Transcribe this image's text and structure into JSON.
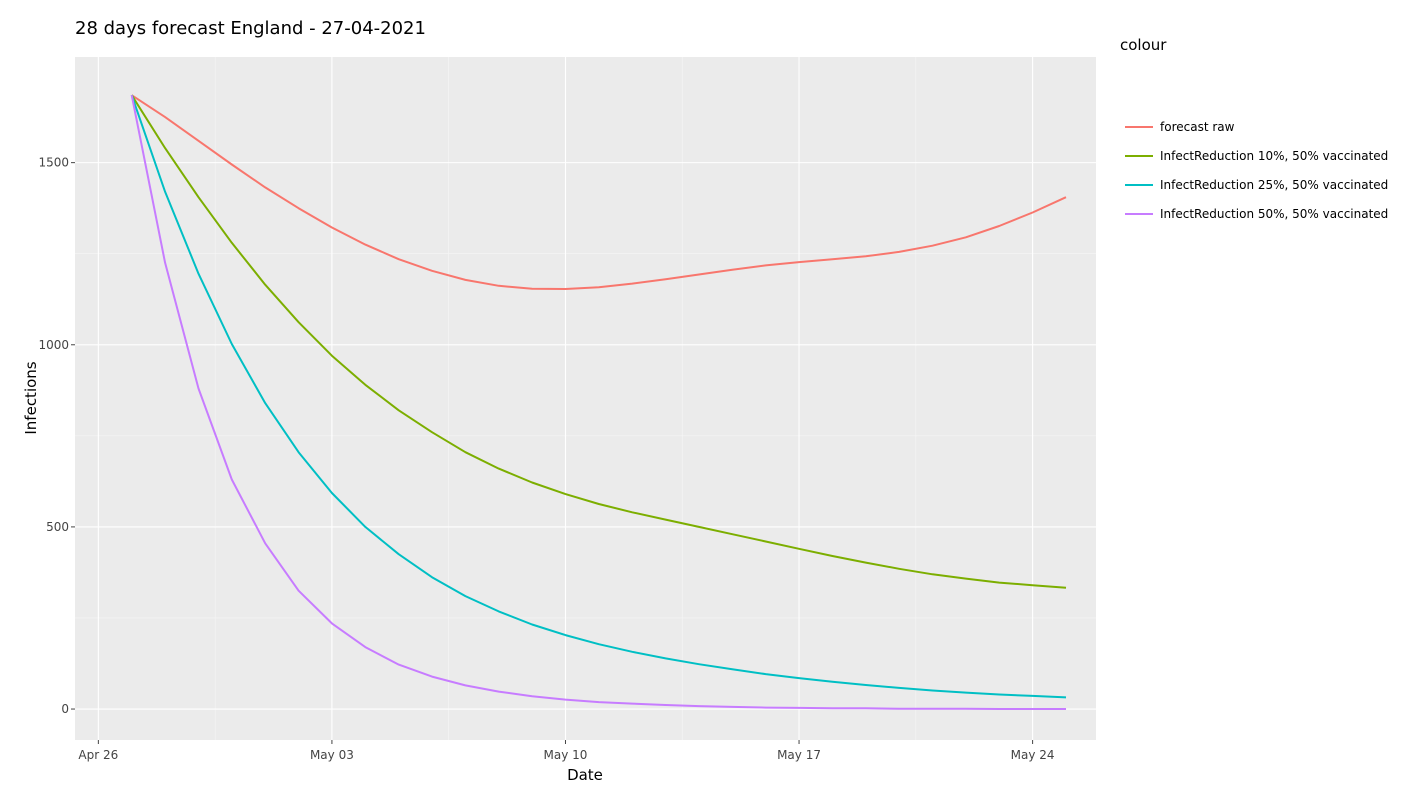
{
  "chart_data": {
    "type": "line",
    "title": "28 days forecast England - 27-04-2021",
    "xlabel": "Date",
    "ylabel": "Infections",
    "x_start": "2021-04-27",
    "x": [
      "Apr 27",
      "Apr 28",
      "Apr 29",
      "Apr 30",
      "May 01",
      "May 02",
      "May 03",
      "May 04",
      "May 05",
      "May 06",
      "May 07",
      "May 08",
      "May 09",
      "May 10",
      "May 11",
      "May 12",
      "May 13",
      "May 14",
      "May 15",
      "May 16",
      "May 17",
      "May 18",
      "May 19",
      "May 20",
      "May 21",
      "May 22",
      "May 23",
      "May 24",
      "May 25"
    ],
    "x_ticks": [
      "Apr 26",
      "May 03",
      "May 10",
      "May 17",
      "May 24"
    ],
    "y_ticks": [
      0,
      500,
      1000,
      1500
    ],
    "ylim": [
      -85,
      1790
    ],
    "grid": true,
    "legend_title": "colour",
    "legend_position": "right",
    "series": [
      {
        "name": "forecast raw",
        "color": "#f8766d",
        "values": [
          1685,
          1625,
          1560,
          1495,
          1432,
          1375,
          1322,
          1275,
          1235,
          1203,
          1178,
          1162,
          1154,
          1153,
          1158,
          1168,
          1180,
          1193,
          1206,
          1218,
          1227,
          1235,
          1243,
          1255,
          1272,
          1295,
          1326,
          1363,
          1405
        ]
      },
      {
        "name": "InfectReduction 10%, 50% vaccinated",
        "color": "#7cae00",
        "values": [
          1685,
          1540,
          1405,
          1280,
          1165,
          1062,
          970,
          890,
          820,
          760,
          705,
          660,
          622,
          590,
          563,
          540,
          520,
          500,
          480,
          460,
          440,
          420,
          402,
          385,
          370,
          358,
          347,
          340,
          333
        ]
      },
      {
        "name": "InfectReduction 25%, 50% vaccinated",
        "color": "#00bfc4",
        "values": [
          1685,
          1420,
          1195,
          1002,
          840,
          705,
          593,
          500,
          425,
          362,
          310,
          268,
          232,
          203,
          178,
          157,
          139,
          123,
          109,
          96,
          85,
          75,
          66,
          58,
          51,
          45,
          40,
          36,
          32
        ]
      },
      {
        "name": "InfectReduction 50%, 50% vaccinated",
        "color": "#c77cff",
        "values": [
          1685,
          1225,
          880,
          630,
          455,
          325,
          235,
          170,
          122,
          89,
          65,
          48,
          35,
          26,
          19,
          15,
          11,
          8,
          6,
          4,
          3,
          2,
          2,
          1,
          1,
          1,
          0,
          0,
          0
        ]
      }
    ]
  }
}
